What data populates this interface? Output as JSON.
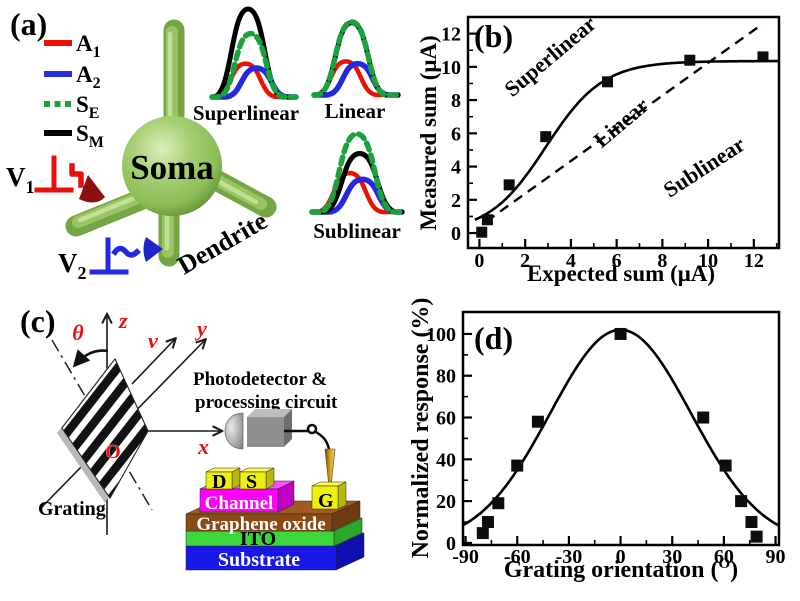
{
  "figure": {
    "panel_labels": {
      "a": "(a)",
      "b": "(b)",
      "c": "(c)",
      "d": "(d)"
    }
  },
  "panels": {
    "a": {
      "legend": [
        {
          "base": "A",
          "sub": "1",
          "color": "#ec1000",
          "line_style": "solid"
        },
        {
          "base": "A",
          "sub": "2",
          "color": "#2a30d8",
          "line_style": "solid"
        },
        {
          "base": "S",
          "sub": "E",
          "color": "#1aa23c",
          "line_style": "dashed"
        },
        {
          "base": "S",
          "sub": "M",
          "color": "#000000",
          "line_style": "solid"
        }
      ],
      "inputs": [
        {
          "base": "V",
          "sub": "1",
          "pulse_color": "#e8100c"
        },
        {
          "base": "V",
          "sub": "2",
          "pulse_color": "#2428e0"
        }
      ],
      "soma_label": "Soma",
      "dendrite_label": "Dendrite",
      "mini_plots": [
        {
          "label": "Superlinear",
          "curves": [
            {
              "series": "A1",
              "h": 0.38,
              "xc": 0.4,
              "wf": 0.9
            },
            {
              "series": "A2",
              "h": 0.33,
              "xc": 0.53,
              "wf": 0.9
            },
            {
              "series": "SM",
              "h": 1.0,
              "xc": 0.43,
              "wf": 1.0
            },
            {
              "series": "SE",
              "h": 0.72,
              "xc": 0.46,
              "wf": 0.95
            }
          ]
        },
        {
          "label": "Linear",
          "curves": [
            {
              "series": "A1",
              "h": 0.46,
              "xc": 0.38,
              "wf": 0.9
            },
            {
              "series": "A2",
              "h": 0.43,
              "xc": 0.52,
              "wf": 0.9
            },
            {
              "series": "SM",
              "h": 0.99,
              "xc": 0.45,
              "wf": 1.0
            },
            {
              "series": "SE",
              "h": 1.0,
              "xc": 0.45,
              "wf": 1.0
            }
          ]
        },
        {
          "label": "Sublinear",
          "curves": [
            {
              "series": "A1",
              "h": 0.5,
              "xc": 0.42,
              "wf": 0.9
            },
            {
              "series": "A2",
              "h": 0.42,
              "xc": 0.56,
              "wf": 0.9
            },
            {
              "series": "SM",
              "h": 0.75,
              "xc": 0.53,
              "wf": 1.0
            },
            {
              "series": "SE",
              "h": 1.0,
              "xc": 0.5,
              "wf": 1.0
            }
          ]
        }
      ]
    },
    "c": {
      "axes": {
        "z": "z",
        "v": "v",
        "y": "y",
        "x": "x",
        "theta": "θ",
        "origin": "O"
      },
      "grating_label": "Grating",
      "detector_caption_line1": "Photodetector &",
      "detector_caption_line2": "processing circuit",
      "device": {
        "drain": "D",
        "source": "S",
        "gate": "G",
        "channel": "Channel",
        "layer_go": "Graphene oxide",
        "layer_ito": "ITO",
        "layer_sub": "Substrate"
      },
      "colors": {
        "channel": "#fb02fb",
        "graphene_oxide": "#8a4a16",
        "ito": "#3cd73c",
        "substrate": "#1717e8",
        "electrode": "#efef0e",
        "needle_gold": "#cf9a1d",
        "detector_gray": "#8f8f8f"
      }
    }
  },
  "chart_data": [
    {
      "panel": "b",
      "type": "scatter",
      "xlabel": "Expected sum (μA)",
      "ylabel": "Measured sum (μA)",
      "xlim": [
        -0.5,
        13.1
      ],
      "ylim": [
        -0.9,
        13.0
      ],
      "xticks": [
        0,
        2,
        4,
        6,
        8,
        10,
        12
      ],
      "yticks": [
        0,
        2,
        4,
        6,
        8,
        10,
        12
      ],
      "xminor": [
        1,
        3,
        5,
        7,
        9,
        11,
        13
      ],
      "yminor": [
        1,
        3,
        5,
        7,
        9,
        11
      ],
      "points": [
        [
          0.1,
          0.05
        ],
        [
          0.35,
          0.8
        ],
        [
          1.3,
          2.9
        ],
        [
          2.9,
          5.8
        ],
        [
          5.6,
          9.1
        ],
        [
          9.2,
          10.4
        ],
        [
          12.4,
          10.6
        ]
      ],
      "fit_curve": {
        "kind": "logistic",
        "L": 10.35,
        "x0": 2.9,
        "s": 1.25,
        "domain": [
          -0.2,
          13.05
        ]
      },
      "reference_line": {
        "style": "dashed",
        "from": [
          0.3,
          0.7
        ],
        "to": [
          12.4,
          12.6
        ]
      },
      "annotations": [
        {
          "text": "Superlinear",
          "x": 3.3,
          "y": 10.3,
          "rotate": -40
        },
        {
          "text": "Linear",
          "x": 6.4,
          "y": 6.3,
          "rotate": -40
        },
        {
          "text": "Sublinear",
          "x": 10.0,
          "y": 3.6,
          "rotate": -33
        }
      ],
      "legend_position": "none",
      "grid": false
    },
    {
      "panel": "d",
      "type": "scatter",
      "xlabel": "Grating orientation (°)",
      "xlabel_display": {
        "pre": "Grating orientation (",
        "sup": "O",
        "post": ")"
      },
      "ylabel": "Normalized response (%)",
      "xlim": [
        -91.5,
        92
      ],
      "ylim": [
        -1,
        110.5
      ],
      "xticks": [
        -90,
        -60,
        -30,
        0,
        30,
        60,
        90
      ],
      "yticks": [
        0,
        20,
        40,
        60,
        80,
        100
      ],
      "xminor": [
        -75,
        -45,
        -15,
        15,
        45,
        75
      ],
      "yminor": [
        10,
        30,
        50,
        70,
        90
      ],
      "points": [
        [
          -80,
          4.7
        ],
        [
          -77,
          10
        ],
        [
          -71,
          19
        ],
        [
          -60,
          37
        ],
        [
          -48,
          58
        ],
        [
          0,
          100
        ],
        [
          48,
          60
        ],
        [
          61,
          37
        ],
        [
          70,
          20
        ],
        [
          76,
          10
        ],
        [
          79,
          3
        ]
      ],
      "fit_curve": {
        "kind": "gaussian",
        "A": 102,
        "sigma": 41,
        "domain": [
          -91.5,
          92
        ]
      },
      "annotations": [],
      "legend_position": "none",
      "grid": false
    }
  ]
}
